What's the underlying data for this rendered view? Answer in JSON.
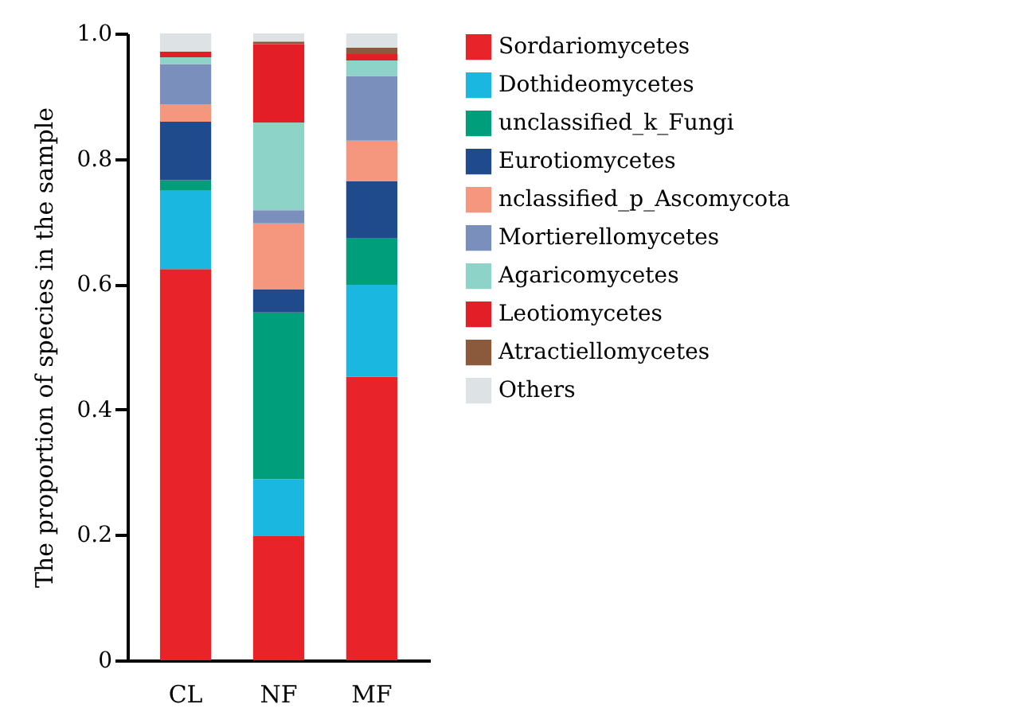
{
  "chart_data": {
    "type": "bar",
    "stacked": true,
    "ylabel": "The proportion of species in the sample",
    "categories": [
      "CL",
      "NF",
      "MF"
    ],
    "ylim": [
      0,
      1
    ],
    "yticks": [
      0,
      0.2,
      0.4,
      0.6,
      0.8,
      {
        "value": 1,
        "label": "1.0"
      }
    ],
    "grid": false,
    "legend": "right",
    "series": [
      {
        "name": "Sordariomycetes",
        "color": "#e8242a",
        "values": [
          0.624,
          0.198,
          0.452
        ]
      },
      {
        "name": "Dothideomycetes",
        "color": "#1ab8e0",
        "values": [
          0.125,
          0.091,
          0.147
        ]
      },
      {
        "name": "unclassified_k_Fungi",
        "color": "#009e7a",
        "values": [
          0.017,
          0.266,
          0.074
        ]
      },
      {
        "name": "Eurotiomycetes",
        "color": "#1f4a8c",
        "values": [
          0.093,
          0.037,
          0.091
        ]
      },
      {
        "name": "nclassified_p_Ascomycota",
        "color": "#f4977e",
        "values": [
          0.028,
          0.105,
          0.065
        ]
      },
      {
        "name": "Mortierellomycetes",
        "color": "#7b8fbd",
        "values": [
          0.064,
          0.021,
          0.103
        ]
      },
      {
        "name": "Agaricomycetes",
        "color": "#8dd3c7",
        "values": [
          0.011,
          0.14,
          0.025
        ]
      },
      {
        "name": "Leotiomycetes",
        "color": "#e31e26",
        "values": [
          0.009,
          0.125,
          0.01
        ]
      },
      {
        "name": "Atractiellomycetes",
        "color": "#8b5a3c",
        "values": [
          0,
          0.004,
          0.01
        ]
      },
      {
        "name": "Others",
        "color": "#dde3e5",
        "values": [
          0.029,
          0.013,
          0.023
        ]
      }
    ]
  }
}
